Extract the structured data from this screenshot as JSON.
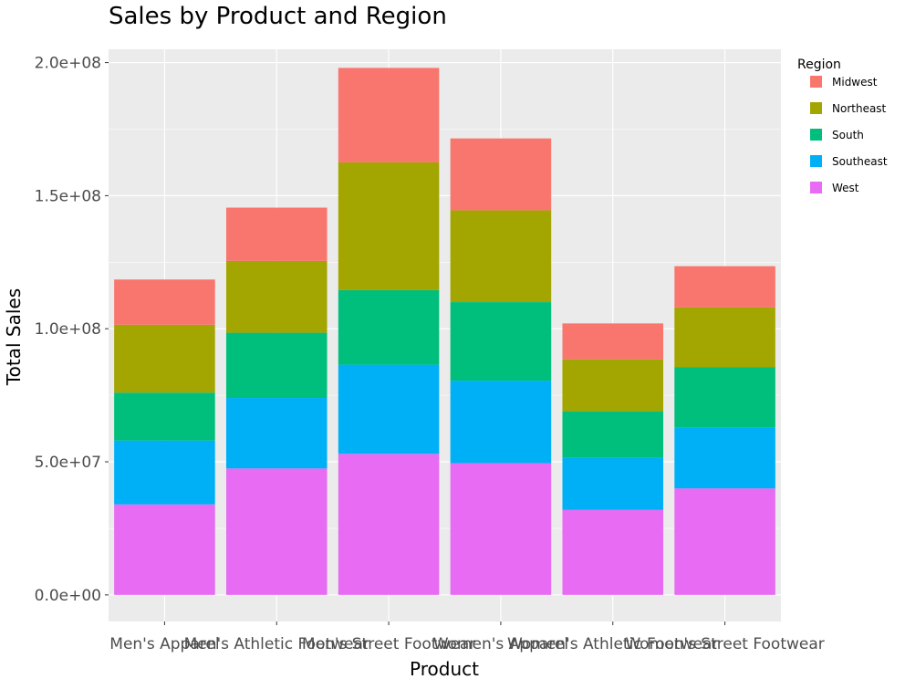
{
  "chart_data": {
    "type": "bar",
    "stacked": true,
    "title": "Sales by Product and Region",
    "xlabel": "Product",
    "ylabel": "Total Sales",
    "ylim": [
      -10000000,
      205000000
    ],
    "yticks": [
      0,
      50000000,
      100000000,
      150000000,
      200000000
    ],
    "ytick_labels": [
      "0.0e+00",
      "5.0e+07",
      "1.0e+08",
      "1.5e+08",
      "2.0e+08"
    ],
    "categories": [
      "Men's Apparel",
      "Men's Athletic Footwear",
      "Men's Street Footwear",
      "Women's Apparel",
      "Women's Athletic Footwear",
      "Women's Street Footwear"
    ],
    "legend_title": "Region",
    "legend_position": "right",
    "series": [
      {
        "name": "West",
        "color": "#E76BF3",
        "values": [
          34000000,
          47500000,
          53000000,
          49500000,
          32000000,
          40000000
        ]
      },
      {
        "name": "Southeast",
        "color": "#00B0F6",
        "values": [
          24000000,
          26500000,
          33500000,
          31000000,
          19500000,
          23000000
        ]
      },
      {
        "name": "South",
        "color": "#00BF7D",
        "values": [
          18000000,
          24500000,
          28000000,
          29500000,
          17500000,
          22500000
        ]
      },
      {
        "name": "Northeast",
        "color": "#A3A500",
        "values": [
          25500000,
          27000000,
          48000000,
          34500000,
          19500000,
          22500000
        ]
      },
      {
        "name": "Midwest",
        "color": "#F8766D",
        "values": [
          17000000,
          20000000,
          35500000,
          27000000,
          13500000,
          15500000
        ]
      }
    ],
    "legend_order": [
      "Midwest",
      "Northeast",
      "South",
      "Southeast",
      "West"
    ],
    "panel_background": "#EBEBEB",
    "grid": true
  }
}
